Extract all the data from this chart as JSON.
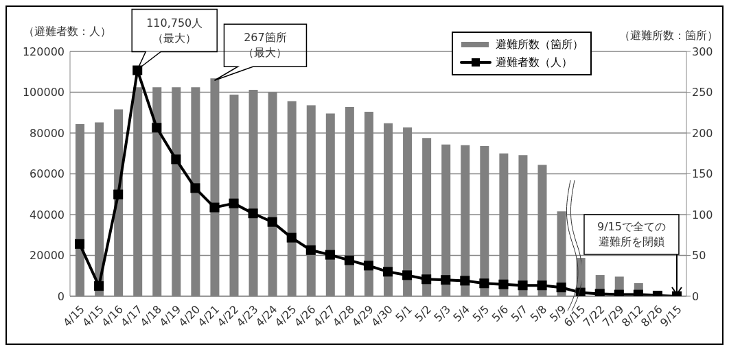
{
  "chart_data": {
    "type": "bar",
    "ylabel": "（避難者数：人）",
    "y2label": "（避難所数：箇所）",
    "categories": [
      "4/15",
      "4/15",
      "4/16",
      "4/17",
      "4/18",
      "4/19",
      "4/20",
      "4/21",
      "4/22",
      "4/23",
      "4/24",
      "4/25",
      "4/26",
      "4/27",
      "4/28",
      "4/29",
      "4/30",
      "5/1",
      "5/2",
      "5/3",
      "5/4",
      "5/5",
      "5/6",
      "5/7",
      "5/8",
      "5/9",
      "6/15",
      "7/22",
      "7/29",
      "8/12",
      "8/26",
      "9/15"
    ],
    "series": [
      {
        "name": "避難所数（箇所）",
        "axis": "y2",
        "color": "#808080",
        "values": [
          211,
          213,
          229,
          256,
          256,
          256,
          256,
          267,
          247,
          253,
          250,
          239,
          234,
          224,
          232,
          226,
          212,
          207,
          194,
          186,
          185,
          184,
          175,
          173,
          161,
          104,
          47,
          26,
          24,
          16,
          0,
          0
        ]
      },
      {
        "name": "避難者数（人）",
        "type": "line",
        "color": "#000000",
        "marker": "square",
        "values": [
          25600,
          5000,
          49900,
          110750,
          82600,
          67100,
          53000,
          43500,
          45500,
          40600,
          36400,
          28700,
          22600,
          20300,
          17600,
          15000,
          12000,
          10300,
          8300,
          8000,
          7600,
          6300,
          5800,
          5300,
          5300,
          4300,
          1800,
          1200,
          800,
          800,
          300,
          0
        ]
      }
    ],
    "ylim": [
      0,
      120000
    ],
    "yticks": [
      0,
      20000,
      40000,
      60000,
      80000,
      100000,
      120000
    ],
    "y2lim": [
      0,
      300
    ],
    "y2ticks": [
      0,
      50,
      100,
      150,
      200,
      250,
      300
    ],
    "grid": "y",
    "legend": "top right",
    "annotations": [
      {
        "text": "110,750人（最大）",
        "x": "4/17",
        "y": 110750
      },
      "267箇所（最大）",
      {
        "text": "9/15で全ての避難所を閉鎖",
        "x": "9/15",
        "y": 0
      }
    ]
  }
}
